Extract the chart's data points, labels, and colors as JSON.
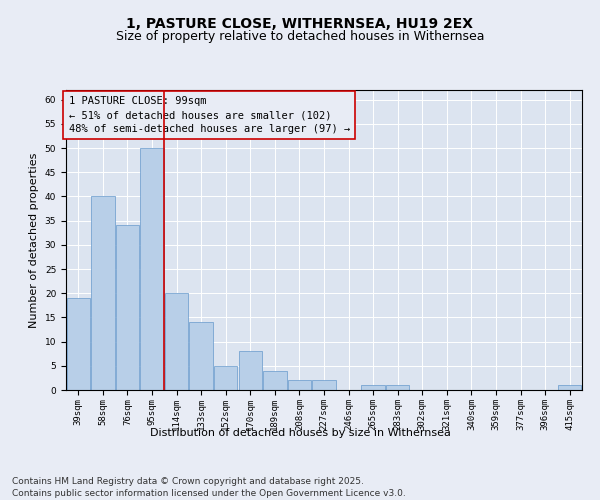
{
  "title_line1": "1, PASTURE CLOSE, WITHERNSEA, HU19 2EX",
  "title_line2": "Size of property relative to detached houses in Withernsea",
  "xlabel": "Distribution of detached houses by size in Withernsea",
  "ylabel": "Number of detached properties",
  "categories": [
    "39sqm",
    "58sqm",
    "76sqm",
    "95sqm",
    "114sqm",
    "133sqm",
    "152sqm",
    "170sqm",
    "189sqm",
    "208sqm",
    "227sqm",
    "246sqm",
    "265sqm",
    "283sqm",
    "302sqm",
    "321sqm",
    "340sqm",
    "359sqm",
    "377sqm",
    "396sqm",
    "415sqm"
  ],
  "values": [
    19,
    40,
    34,
    50,
    20,
    14,
    5,
    8,
    4,
    2,
    2,
    0,
    1,
    1,
    0,
    0,
    0,
    0,
    0,
    0,
    1
  ],
  "bar_color": "#b8cfe8",
  "bar_edge_color": "#6699cc",
  "background_color": "#e8ecf5",
  "plot_bg_color": "#dce4f0",
  "grid_color": "#ffffff",
  "annotation_text": "1 PASTURE CLOSE: 99sqm\n← 51% of detached houses are smaller (102)\n48% of semi-detached houses are larger (97) →",
  "vline_x_index": 3.5,
  "vline_color": "#cc0000",
  "annotation_box_edge_color": "#cc0000",
  "ylim": [
    0,
    62
  ],
  "yticks": [
    0,
    5,
    10,
    15,
    20,
    25,
    30,
    35,
    40,
    45,
    50,
    55,
    60
  ],
  "footer_text": "Contains HM Land Registry data © Crown copyright and database right 2025.\nContains public sector information licensed under the Open Government Licence v3.0.",
  "title_fontsize": 10,
  "subtitle_fontsize": 9,
  "tick_fontsize": 6.5,
  "xlabel_fontsize": 8,
  "ylabel_fontsize": 8,
  "annotation_fontsize": 7.5,
  "footer_fontsize": 6.5
}
